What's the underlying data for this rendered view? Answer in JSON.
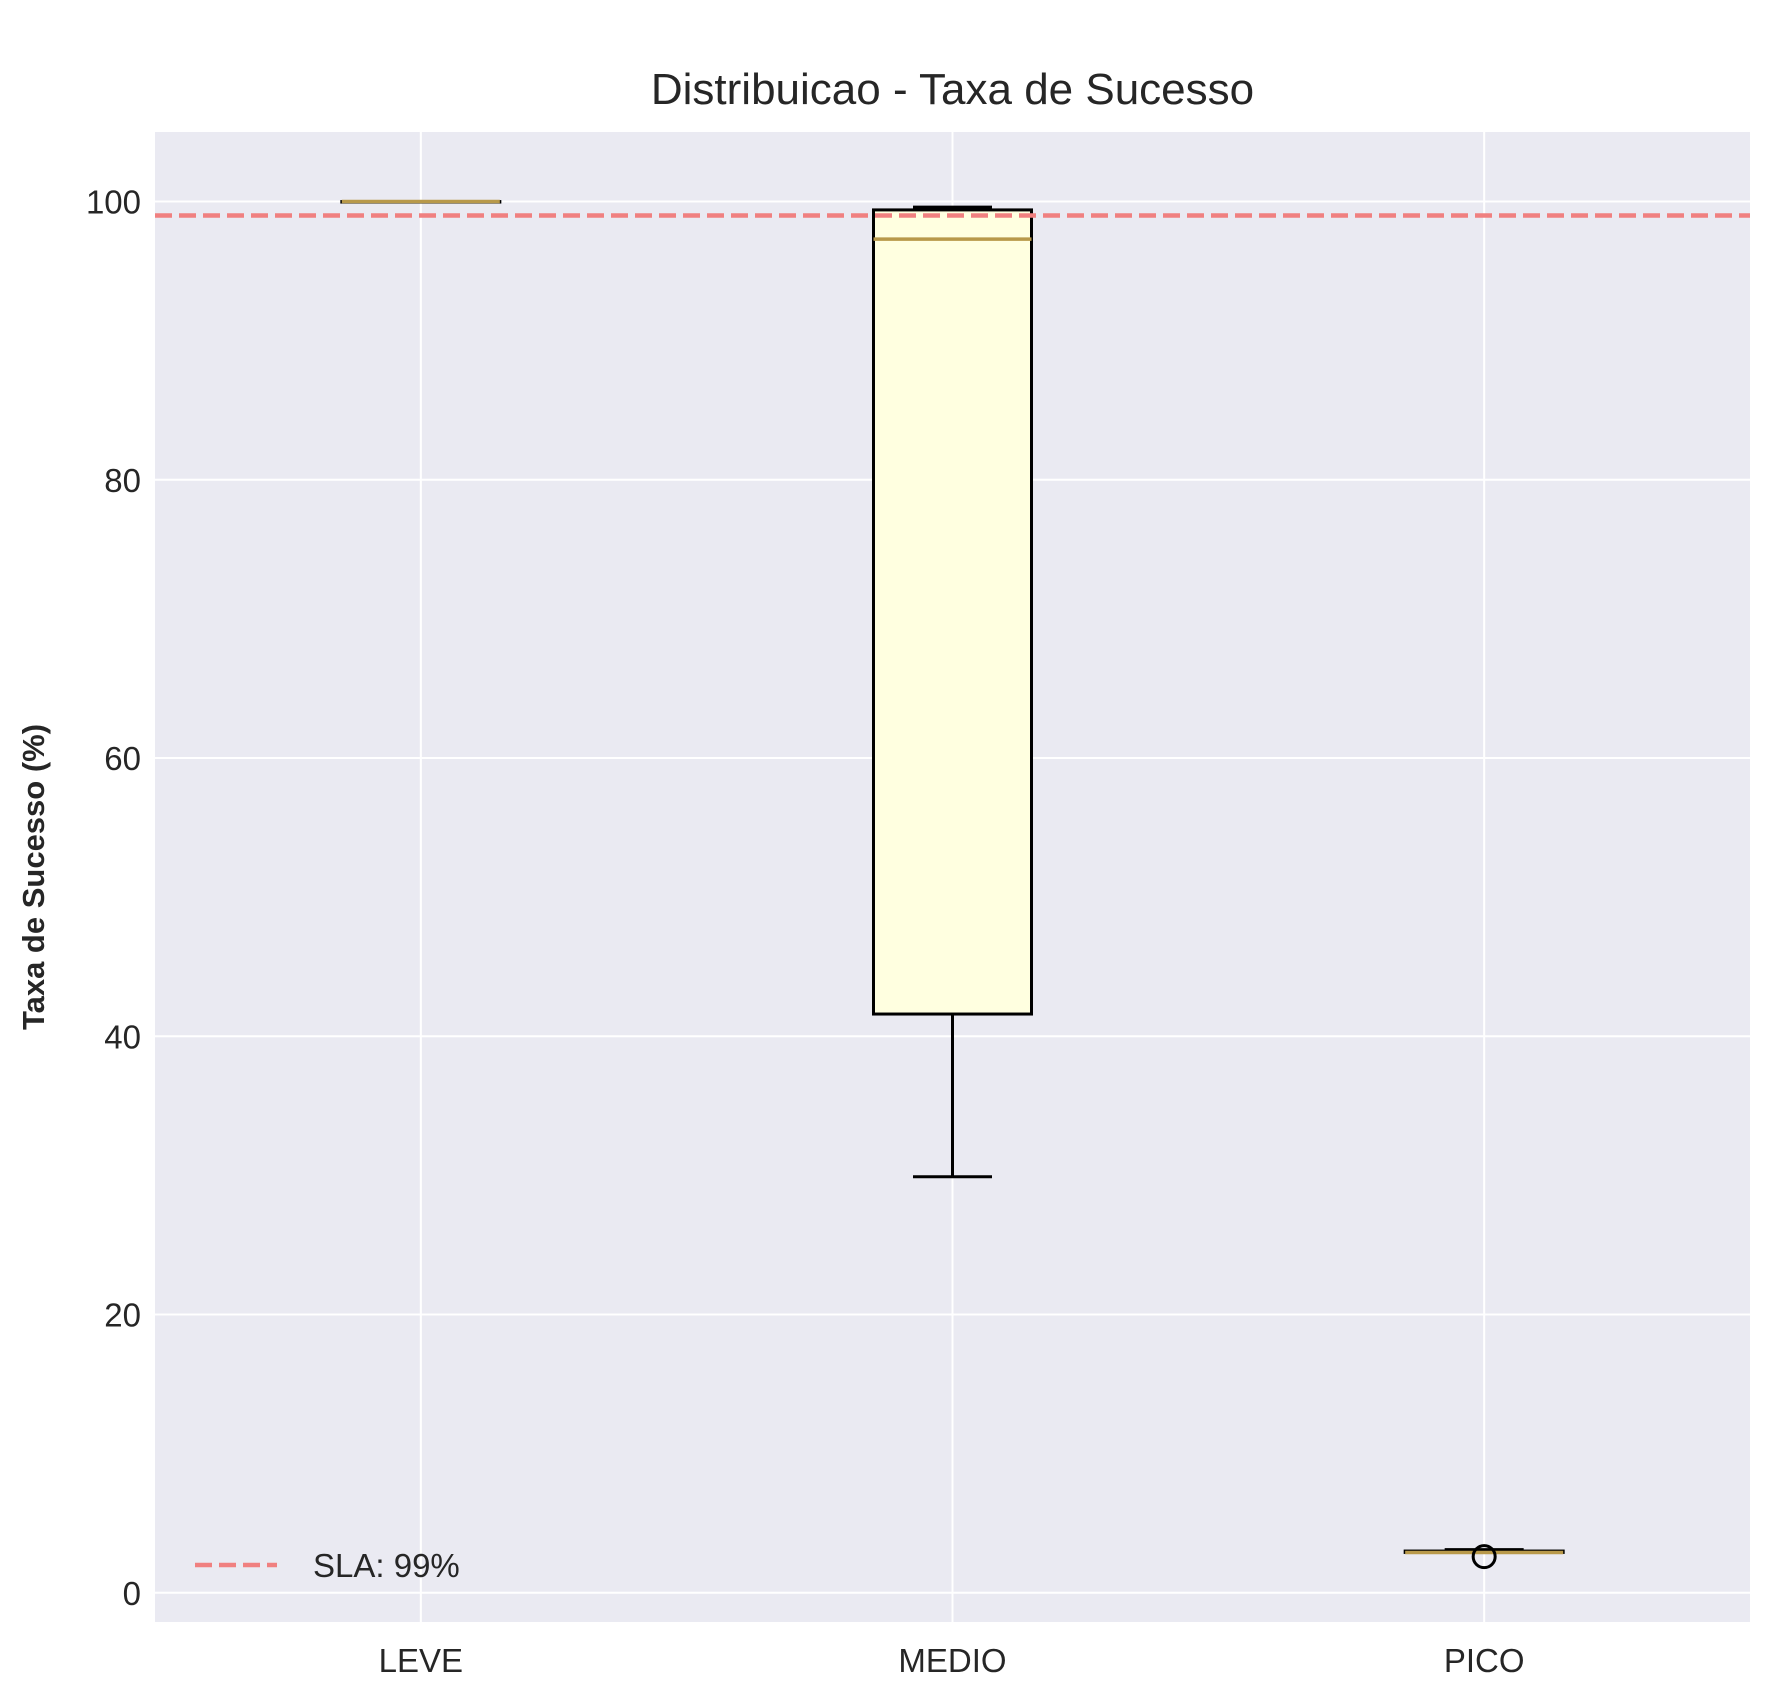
{
  "chart_data": {
    "type": "box",
    "title": "Distribuicao - Taxa de Sucesso",
    "xlabel": "",
    "ylabel": "Taxa de Sucesso (%)",
    "ylim": [
      -2.1,
      105
    ],
    "yticks": [
      0,
      20,
      40,
      60,
      80,
      100
    ],
    "grid": true,
    "categories": [
      "LEVE",
      "MEDIO",
      "PICO"
    ],
    "boxes": [
      {
        "category": "LEVE",
        "whisker_low": 100,
        "q1": 100,
        "median": 100,
        "q3": 100,
        "whisker_high": 100,
        "outliers": []
      },
      {
        "category": "MEDIO",
        "whisker_low": 29.9,
        "q1": 41.6,
        "median": 97.3,
        "q3": 99.4,
        "whisker_high": 99.6,
        "outliers": []
      },
      {
        "category": "PICO",
        "whisker_low": 2.9,
        "q1": 2.9,
        "median": 2.9,
        "q3": 3.0,
        "whisker_high": 3.1,
        "outliers": [
          2.6
        ]
      }
    ],
    "reference_line": {
      "value": 99,
      "label": "SLA: 99%",
      "color": "#f08080",
      "style": "dashed"
    },
    "legend": {
      "position": "bottom-left",
      "entries": [
        "SLA: 99%"
      ]
    },
    "colors": {
      "plot_background": "#eaeaf2",
      "box_fill": "#ffffe0",
      "box_edge": "#000000",
      "median": "#b8994a",
      "grid": "#ffffff"
    }
  }
}
